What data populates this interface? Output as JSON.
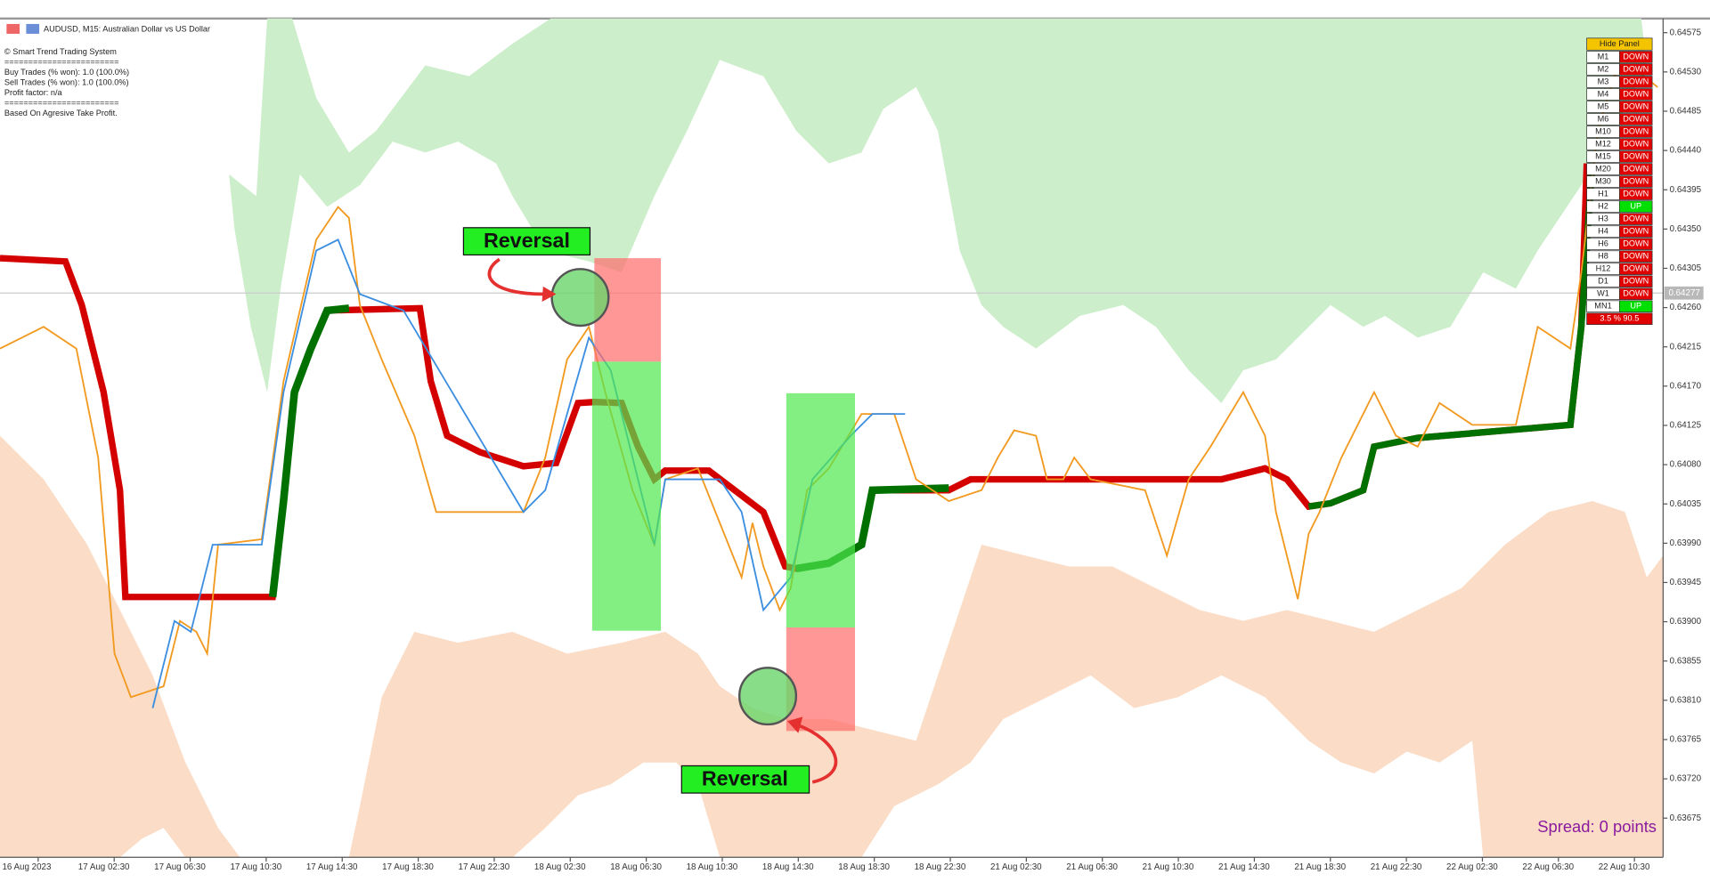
{
  "header": {
    "title": "AUDUSD, M15:  Australian Dollar vs US Dollar"
  },
  "info_panel": {
    "lines": [
      "© Smart Trend Trading System",
      "========================",
      "Buy Trades (% won): 1.0 (100.0%)",
      "Sell Trades (% won): 1.0 (100.0%)",
      "Profit factor: n/a",
      "========================",
      "Based On Agresive Take Profit."
    ]
  },
  "annotations": [
    "Reversal",
    "Reversal"
  ],
  "spread": "Spread: 0 points",
  "price_axis": {
    "labels": [
      "0.64575",
      "0.64530",
      "0.64485",
      "0.64440",
      "0.64395",
      "0.64350",
      "0.64305",
      "0.64260",
      "0.64215",
      "0.64170",
      "0.64125",
      "0.64080",
      "0.64035",
      "0.63990",
      "0.63945",
      "0.63900",
      "0.63855",
      "0.63810",
      "0.63765",
      "0.63720",
      "0.63675"
    ],
    "current": "0.64277"
  },
  "time_axis": {
    "labels": [
      "16 Aug 2023",
      "17 Aug 02:30",
      "17 Aug 06:30",
      "17 Aug 10:30",
      "17 Aug 14:30",
      "17 Aug 18:30",
      "17 Aug 22:30",
      "18 Aug 02:30",
      "18 Aug 06:30",
      "18 Aug 10:30",
      "18 Aug 14:30",
      "18 Aug 18:30",
      "18 Aug 22:30",
      "21 Aug 02:30",
      "21 Aug 06:30",
      "21 Aug 10:30",
      "21 Aug 14:30",
      "21 Aug 18:30",
      "21 Aug 22:30",
      "22 Aug 02:30",
      "22 Aug 06:30",
      "22 Aug 10:30"
    ]
  },
  "trend_panel": {
    "button": "Hide Panel",
    "rows": [
      {
        "timeframe": "M1",
        "direction": "DOWN",
        "color": "#e00000"
      },
      {
        "timeframe": "M2",
        "direction": "DOWN",
        "color": "#e00000"
      },
      {
        "timeframe": "M3",
        "direction": "DOWN",
        "color": "#e00000"
      },
      {
        "timeframe": "M4",
        "direction": "DOWN",
        "color": "#e00000"
      },
      {
        "timeframe": "M5",
        "direction": "DOWN",
        "color": "#e00000"
      },
      {
        "timeframe": "M6",
        "direction": "DOWN",
        "color": "#e00000"
      },
      {
        "timeframe": "M10",
        "direction": "DOWN",
        "color": "#e00000"
      },
      {
        "timeframe": "M12",
        "direction": "DOWN",
        "color": "#e00000"
      },
      {
        "timeframe": "M15",
        "direction": "DOWN",
        "color": "#e00000"
      },
      {
        "timeframe": "M20",
        "direction": "DOWN",
        "color": "#e00000"
      },
      {
        "timeframe": "M30",
        "direction": "DOWN",
        "color": "#e00000"
      },
      {
        "timeframe": "H1",
        "direction": "DOWN",
        "color": "#e00000"
      },
      {
        "timeframe": "H2",
        "direction": "UP",
        "color": "#00e000"
      },
      {
        "timeframe": "H3",
        "direction": "DOWN",
        "color": "#e00000"
      },
      {
        "timeframe": "H4",
        "direction": "DOWN",
        "color": "#e00000"
      },
      {
        "timeframe": "H6",
        "direction": "DOWN",
        "color": "#e00000"
      },
      {
        "timeframe": "H8",
        "direction": "DOWN",
        "color": "#e00000"
      },
      {
        "timeframe": "H12",
        "direction": "DOWN",
        "color": "#e00000"
      },
      {
        "timeframe": "D1",
        "direction": "DOWN",
        "color": "#e00000"
      },
      {
        "timeframe": "W1",
        "direction": "DOWN",
        "color": "#e00000"
      },
      {
        "timeframe": "MN1",
        "direction": "UP",
        "color": "#00e000"
      }
    ],
    "footer": "3.5 % 90.5"
  }
}
